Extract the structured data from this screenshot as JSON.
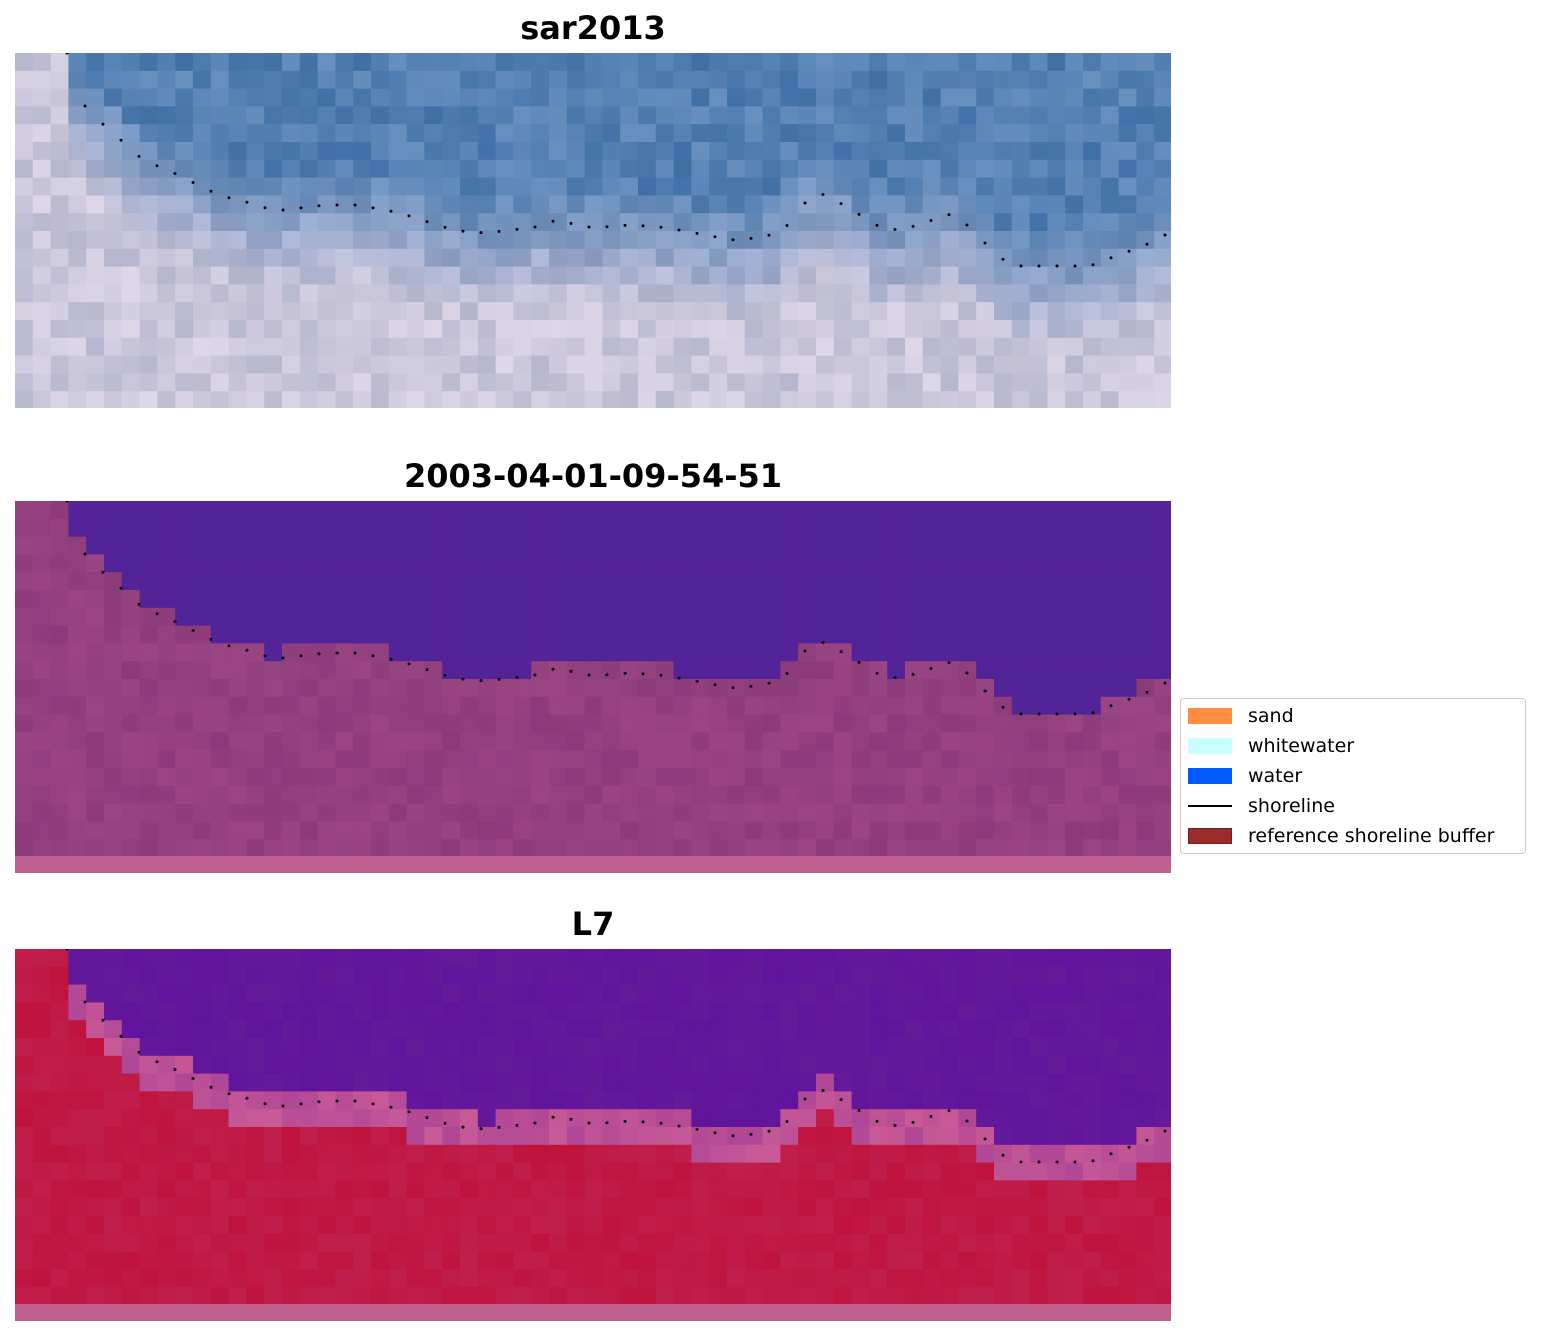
{
  "panels": [
    {
      "title": "sar2013",
      "kind": "rgb"
    },
    {
      "title": "2003-04-01-09-54-51",
      "kind": "classified"
    },
    {
      "title": "L7",
      "kind": "index"
    }
  ],
  "legend": {
    "items": [
      {
        "label": "sand",
        "color": "#ff8c3f"
      },
      {
        "label": "whitewater",
        "color": "#c8fefb"
      },
      {
        "label": "water",
        "color": "#005aff"
      },
      {
        "label": "shoreline",
        "color": "#000000"
      },
      {
        "label": "reference shoreline buffer",
        "color": "#9b2c2c"
      }
    ]
  },
  "colors": {
    "rgb_sea": "#4a7ab0",
    "classified_water": "#532398",
    "classified_land": "#8c3b7a",
    "index_water": "#651a9a",
    "index_land": "#c01f4c",
    "buffer_strip": "#c06090"
  }
}
